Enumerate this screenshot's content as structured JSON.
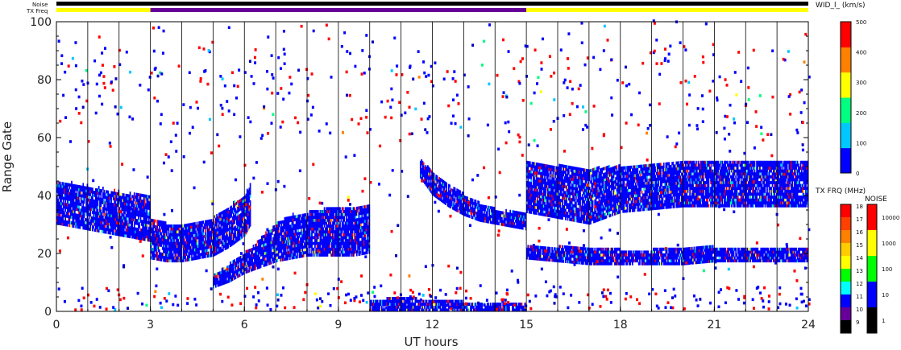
{
  "chart_data": {
    "type": "heatmap",
    "title": "",
    "xlabel": "UT hours",
    "ylabel": "Range Gate",
    "xlim": [
      0,
      24
    ],
    "ylim": [
      0,
      100
    ],
    "x_ticks": [
      "0",
      "3",
      "6",
      "9",
      "12",
      "15",
      "18",
      "21",
      "24"
    ],
    "x_tick_values": [
      0,
      3,
      6,
      9,
      12,
      15,
      18,
      21,
      24
    ],
    "y_ticks": [
      "0",
      "20",
      "40",
      "60",
      "80",
      "100"
    ],
    "y_tick_values": [
      0,
      20,
      40,
      60,
      80,
      100
    ],
    "hour_gridlines": [
      1,
      2,
      4,
      5,
      7,
      8,
      10,
      11,
      13,
      14,
      16,
      17,
      19,
      20,
      22,
      23
    ],
    "status_bars": {
      "noise_label": "Noise",
      "txfreq_label": "TX Freq",
      "noise_color": "#000000",
      "txfreq_segments": [
        {
          "start": 0,
          "end": 3,
          "color": "#ffff00"
        },
        {
          "start": 3,
          "end": 15,
          "color": "#660099"
        },
        {
          "start": 15,
          "end": 24,
          "color": "#ffff00"
        }
      ]
    },
    "colorbar_wid": {
      "label": "WID_l_ (km/s)",
      "min": 0,
      "max": 500,
      "ticks": [
        "500",
        "400",
        "300",
        "200",
        "100",
        "0"
      ],
      "tick_values": [
        500,
        400,
        300,
        200,
        100,
        0
      ],
      "colors": [
        "#0000ff",
        "#00c8ff",
        "#00ff80",
        "#ffff00",
        "#ff8000",
        "#ff0000"
      ]
    },
    "colorbar_txfreq": {
      "label": "TX FRQ (MHz)",
      "ticks": [
        "18",
        "17",
        "16",
        "15",
        "14",
        "13",
        "12",
        "11",
        "10",
        "9"
      ],
      "colors": [
        "#ff0000",
        "#ff4000",
        "#ff8000",
        "#ffcc00",
        "#ffff00",
        "#00ff00",
        "#00ffff",
        "#0000ff",
        "#660099",
        "#000000"
      ]
    },
    "colorbar_noise": {
      "label": "NOISE",
      "ticks": [
        "10000",
        "1000",
        "100",
        "10",
        "1"
      ],
      "colors": [
        "#ff0000",
        "#ffff00",
        "#00ff00",
        "#0000ff",
        "#000000"
      ]
    },
    "series": [
      {
        "x": [
          0,
          0.5,
          1.0,
          1.5,
          2.0,
          2.5,
          3.0
        ],
        "y_low": [
          30,
          29,
          28,
          27,
          26,
          25,
          24
        ],
        "y_high": [
          45,
          44,
          43,
          42,
          41,
          40,
          40
        ]
      },
      {
        "x": [
          3.0,
          3.5,
          4.0,
          4.5,
          5.0,
          5.5,
          6.0,
          6.2
        ],
        "y_low": [
          18,
          17,
          17,
          18,
          19,
          22,
          26,
          30
        ],
        "y_high": [
          32,
          30,
          30,
          30,
          32,
          36,
          40,
          44
        ]
      },
      {
        "x": [
          5.0,
          5.5,
          6.0,
          6.5,
          7.0,
          7.5,
          8.0,
          8.5,
          9.0,
          9.5,
          10.0
        ],
        "y_low": [
          8,
          10,
          13,
          15,
          17,
          18,
          19,
          19,
          19,
          19,
          20
        ],
        "y_high": [
          12,
          16,
          20,
          25,
          30,
          33,
          34,
          35,
          36,
          36,
          36
        ]
      },
      {
        "x": [
          11.6,
          12.0,
          12.5,
          13.0,
          13.5,
          14.0,
          14.5,
          15.0
        ],
        "y_low": [
          46,
          40,
          36,
          33,
          31,
          30,
          29,
          28
        ],
        "y_high": [
          52,
          48,
          44,
          40,
          37,
          35,
          34,
          34
        ]
      },
      {
        "x": [
          15.0,
          16.0,
          17.0,
          18.0,
          19.0,
          20.0,
          21.0,
          22.0,
          23.0,
          24.0
        ],
        "y_low": [
          34,
          32,
          30,
          34,
          35,
          36,
          36,
          36,
          36,
          36
        ],
        "y_high": [
          52,
          50,
          49,
          50,
          51,
          51,
          52,
          52,
          52,
          52
        ]
      },
      {
        "x": [
          15.0,
          16.0,
          17.0,
          18.0,
          19.0,
          20.0,
          21.0,
          22.0,
          23.0,
          24.0
        ],
        "y_low": [
          18,
          17,
          16,
          16,
          16,
          16,
          17,
          17,
          17,
          17
        ],
        "y_high": [
          22,
          22,
          22,
          21,
          21,
          22,
          22,
          22,
          22,
          22
        ]
      },
      {
        "x": [
          10.0,
          10.5,
          11.0,
          11.5,
          12.0,
          13.0,
          14.0,
          15.0
        ],
        "y_low": [
          0,
          0,
          0,
          0,
          0,
          0,
          0,
          0
        ],
        "y_high": [
          4,
          4,
          5,
          4,
          4,
          3,
          3,
          3
        ]
      }
    ]
  }
}
